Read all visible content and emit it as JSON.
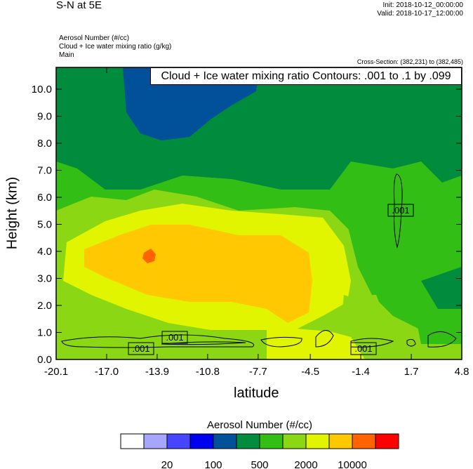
{
  "header": {
    "title": "S-N at 5E",
    "init": "Init: 2018-10-12_00:00:00",
    "valid": "Valid: 2018-10-17_12:00:00",
    "field_lines": [
      "Aerosol Number   (#/cc)",
      "Cloud + Ice water mixing ratio   (g/kg)",
      "Main"
    ],
    "cross_section": "Cross-Section: (382,231) to (382,485)"
  },
  "chart_data": {
    "type": "heatmap",
    "subtype": "filled contour with line contour overlay",
    "contour_info": "Cloud + Ice water mixing ratio Contours: .001 to .1 by .099",
    "xlabel": "latitude",
    "ylabel": "Height (km)",
    "xlim": [
      -20.1,
      4.8
    ],
    "ylim": [
      0,
      10.8
    ],
    "xticks": [
      "-20.1",
      "-17.0",
      "-13.9",
      "-10.8",
      "-7.7",
      "-4.5",
      "-1.4",
      "1.7",
      "4.8"
    ],
    "yticks": [
      "0.0",
      "1.0",
      "2.0",
      "3.0",
      "4.0",
      "5.0",
      "6.0",
      "7.0",
      "8.0",
      "9.0",
      "10.0"
    ],
    "contour_labels": [
      ".001",
      ".001",
      ".001",
      ".001"
    ],
    "colorbar": {
      "title": "Aerosol Number  (#/cc)",
      "colors": [
        "#ffffff",
        "#a6a6ff",
        "#4646ff",
        "#0000f0",
        "#00509a",
        "#008c3c",
        "#32be14",
        "#8cd714",
        "#e1f500",
        "#ffc800",
        "#ff6400",
        "#ff0000"
      ],
      "tick_labels": [
        "20",
        "100",
        "500",
        "2000",
        "10000"
      ]
    },
    "grid": false
  }
}
